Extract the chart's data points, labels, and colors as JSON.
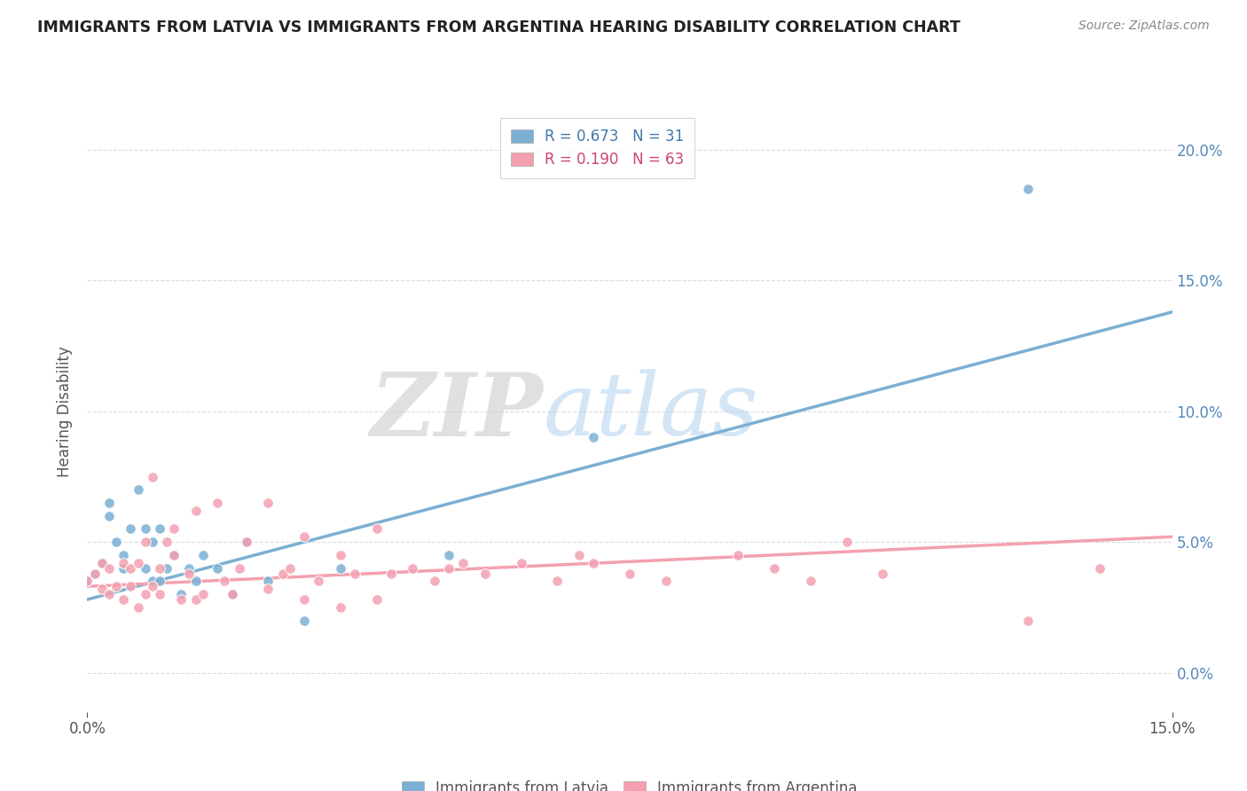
{
  "title": "IMMIGRANTS FROM LATVIA VS IMMIGRANTS FROM ARGENTINA HEARING DISABILITY CORRELATION CHART",
  "source_text": "Source: ZipAtlas.com",
  "ylabel": "Hearing Disability",
  "xlim": [
    0.0,
    0.15
  ],
  "ylim": [
    -0.015,
    0.215
  ],
  "ytick_values": [
    0.0,
    0.05,
    0.1,
    0.15,
    0.2
  ],
  "latvia_color": "#7BAFD4",
  "argentina_color": "#F4A0B0",
  "latvia_R": 0.673,
  "latvia_N": 31,
  "argentina_R": 0.19,
  "argentina_N": 63,
  "legend_label_latvia": "Immigrants from Latvia",
  "legend_label_argentina": "Immigrants from Argentina",
  "watermark_zip": "ZIP",
  "watermark_atlas": "atlas",
  "latvia_scatter_x": [
    0.0,
    0.001,
    0.002,
    0.003,
    0.003,
    0.004,
    0.005,
    0.005,
    0.006,
    0.007,
    0.008,
    0.008,
    0.009,
    0.009,
    0.01,
    0.01,
    0.011,
    0.012,
    0.013,
    0.014,
    0.015,
    0.016,
    0.018,
    0.02,
    0.022,
    0.025,
    0.03,
    0.035,
    0.05,
    0.07,
    0.13
  ],
  "latvia_scatter_y": [
    0.035,
    0.038,
    0.042,
    0.06,
    0.065,
    0.05,
    0.04,
    0.045,
    0.055,
    0.07,
    0.04,
    0.055,
    0.035,
    0.05,
    0.035,
    0.055,
    0.04,
    0.045,
    0.03,
    0.04,
    0.035,
    0.045,
    0.04,
    0.03,
    0.05,
    0.035,
    0.02,
    0.04,
    0.045,
    0.09,
    0.185
  ],
  "argentina_scatter_x": [
    0.0,
    0.001,
    0.002,
    0.002,
    0.003,
    0.003,
    0.004,
    0.005,
    0.005,
    0.006,
    0.006,
    0.007,
    0.007,
    0.008,
    0.008,
    0.009,
    0.009,
    0.01,
    0.01,
    0.011,
    0.012,
    0.012,
    0.013,
    0.014,
    0.015,
    0.015,
    0.016,
    0.018,
    0.019,
    0.02,
    0.021,
    0.022,
    0.025,
    0.025,
    0.027,
    0.028,
    0.03,
    0.03,
    0.032,
    0.035,
    0.035,
    0.037,
    0.04,
    0.04,
    0.042,
    0.045,
    0.048,
    0.05,
    0.052,
    0.055,
    0.06,
    0.065,
    0.068,
    0.07,
    0.075,
    0.08,
    0.09,
    0.095,
    0.1,
    0.105,
    0.11,
    0.13,
    0.14
  ],
  "argentina_scatter_y": [
    0.035,
    0.038,
    0.032,
    0.042,
    0.03,
    0.04,
    0.033,
    0.028,
    0.042,
    0.033,
    0.04,
    0.025,
    0.042,
    0.03,
    0.05,
    0.033,
    0.075,
    0.03,
    0.04,
    0.05,
    0.045,
    0.055,
    0.028,
    0.038,
    0.028,
    0.062,
    0.03,
    0.065,
    0.035,
    0.03,
    0.04,
    0.05,
    0.032,
    0.065,
    0.038,
    0.04,
    0.028,
    0.052,
    0.035,
    0.025,
    0.045,
    0.038,
    0.028,
    0.055,
    0.038,
    0.04,
    0.035,
    0.04,
    0.042,
    0.038,
    0.042,
    0.035,
    0.045,
    0.042,
    0.038,
    0.035,
    0.045,
    0.04,
    0.035,
    0.05,
    0.038,
    0.02,
    0.04
  ],
  "latvia_trendline_x": [
    0.0,
    0.15
  ],
  "latvia_trendline_y": [
    0.028,
    0.138
  ],
  "argentina_trendline_x": [
    0.0,
    0.15
  ],
  "argentina_trendline_y": [
    0.033,
    0.052
  ],
  "grid_color": "#DDDDDD",
  "background_color": "#FFFFFF",
  "legend_color_latvia": "#4477AA",
  "legend_color_argentina": "#CC4477",
  "right_axis_color": "#5588BB",
  "title_color": "#222222",
  "axis_label_color": "#555555",
  "tick_label_color": "#5588BB"
}
